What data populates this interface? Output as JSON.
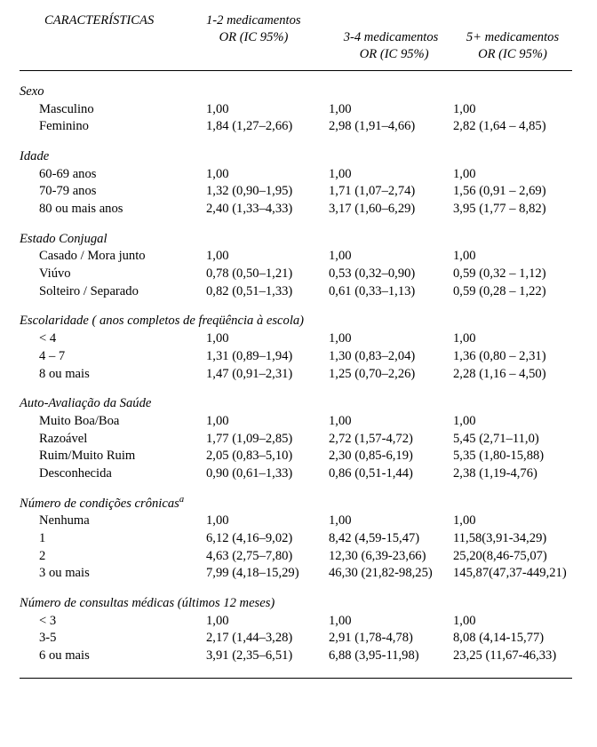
{
  "table": {
    "background_color": "#ffffff",
    "text_color": "#000000",
    "font_family": "Times New Roman",
    "font_size_pt": 11,
    "rule_color": "#000000",
    "header": {
      "col0": "CARACTERÍSTICAS",
      "col1_line1": "1-2 medicamentos",
      "col1_line2": "OR (IC 95%)",
      "col2_line1": "3-4 medicamentos",
      "col2_line2": "OR (IC 95%)",
      "col3_line1": "5+ medicamentos",
      "col3_line2": "OR (IC 95%)"
    },
    "groups": [
      {
        "title": "Sexo",
        "rows": [
          {
            "label": "Masculino",
            "c1": "1,00",
            "c2": "1,00",
            "c3": "1,00"
          },
          {
            "label": "Feminino",
            "c1": "1,84 (1,27–2,66)",
            "c2": "2,98 (1,91–4,66)",
            "c3": "2,82 (1,64 – 4,85)"
          }
        ]
      },
      {
        "title": "Idade",
        "rows": [
          {
            "label": "60-69 anos",
            "c1": "1,00",
            "c2": "1,00",
            "c3": "1,00"
          },
          {
            "label": "70-79 anos",
            "c1": "1,32 (0,90–1,95)",
            "c2": "1,71 (1,07–2,74)",
            "c3": "1,56 (0,91 – 2,69)"
          },
          {
            "label": "80 ou mais anos",
            "c1": "2,40 (1,33–4,33)",
            "c2": "3,17 (1,60–6,29)",
            "c3": "3,95 (1,77 – 8,82)"
          }
        ]
      },
      {
        "title": "Estado Conjugal",
        "rows": [
          {
            "label": "Casado / Mora junto",
            "c1": "1,00",
            "c2": "1,00",
            "c3": "1,00"
          },
          {
            "label": "Viúvo",
            "c1": "0,78 (0,50–1,21)",
            "c2": "0,53 (0,32–0,90)",
            "c3": "0,59 (0,32 – 1,12)"
          },
          {
            "label": "Solteiro / Separado",
            "c1": "0,82 (0,51–1,33)",
            "c2": "0,61 (0,33–1,13)",
            "c3": "0,59 (0,28 – 1,22)"
          }
        ]
      },
      {
        "title": "Escolaridade ( anos completos de freqüência à escola)",
        "rows": [
          {
            "label": "< 4",
            "c1": "1,00",
            "c2": "1,00",
            "c3": "1,00"
          },
          {
            "label": "4 – 7",
            "c1": "1,31 (0,89–1,94)",
            "c2": "1,30 (0,83–2,04)",
            "c3": "1,36 (0,80 – 2,31)"
          },
          {
            "label": "8 ou mais",
            "c1": "1,47 (0,91–2,31)",
            "c2": "1,25 (0,70–2,26)",
            "c3": "2,28 (1,16 – 4,50)"
          }
        ]
      },
      {
        "title": "Auto-Avaliação da Saúde",
        "rows": [
          {
            "label": "Muito Boa/Boa",
            "c1": "1,00",
            "c2": "1,00",
            "c3": "1,00"
          },
          {
            "label": "Razoável",
            "c1": "1,77 (1,09–2,85)",
            "c2": "2,72 (1,57-4,72)",
            "c3": "5,45 (2,71–11,0)"
          },
          {
            "label": "Ruim/Muito Ruim",
            "c1": "2,05 (0,83–5,10)",
            "c2": "2,30 (0,85-6,19)",
            "c3": "5,35 (1,80-15,88)"
          },
          {
            "label": "Desconhecida",
            "c1": "0,90 (0,61–1,33)",
            "c2": "0,86 (0,51-1,44)",
            "c3": "2,38 (1,19-4,76)"
          }
        ]
      },
      {
        "title": "Número de condições crônicas",
        "sup": "a",
        "rows": [
          {
            "label": "Nenhuma",
            "c1": "1,00",
            "c2": "1,00",
            "c3": "  1,00"
          },
          {
            "label": "1",
            "c1": "6,12 (4,16–9,02)",
            "c2": "  8,42 (4,59-15,47)",
            "c3": "  11,58(3,91-34,29)"
          },
          {
            "label": "2",
            "c1": "4,63 (2,75–7,80)",
            "c2": "12,30 (6,39-23,66)",
            "c3": "  25,20(8,46-75,07)"
          },
          {
            "label": "3 ou mais",
            "c1": "7,99 (4,18–15,29)",
            "c2": "46,30 (21,82-98,25)",
            "c3": "145,87(47,37-449,21)"
          }
        ]
      },
      {
        "title": "Número de consultas médicas (últimos 12 meses)",
        "rows": [
          {
            "label": "< 3",
            "c1": "1,00",
            "c2": "1,00",
            "c3": "  1,00"
          },
          {
            "label": "3-5",
            "c1": "2,17 (1,44–3,28)",
            "c2": "2,91 (1,78-4,78)",
            "c3": "  8,08 (4,14-15,77)"
          },
          {
            "label": "6 ou mais",
            "c1": "3,91 (2,35–6,51)",
            "c2": "6,88 (3,95-11,98)",
            "c3": "23,25 (11,67-46,33)"
          }
        ]
      }
    ]
  }
}
